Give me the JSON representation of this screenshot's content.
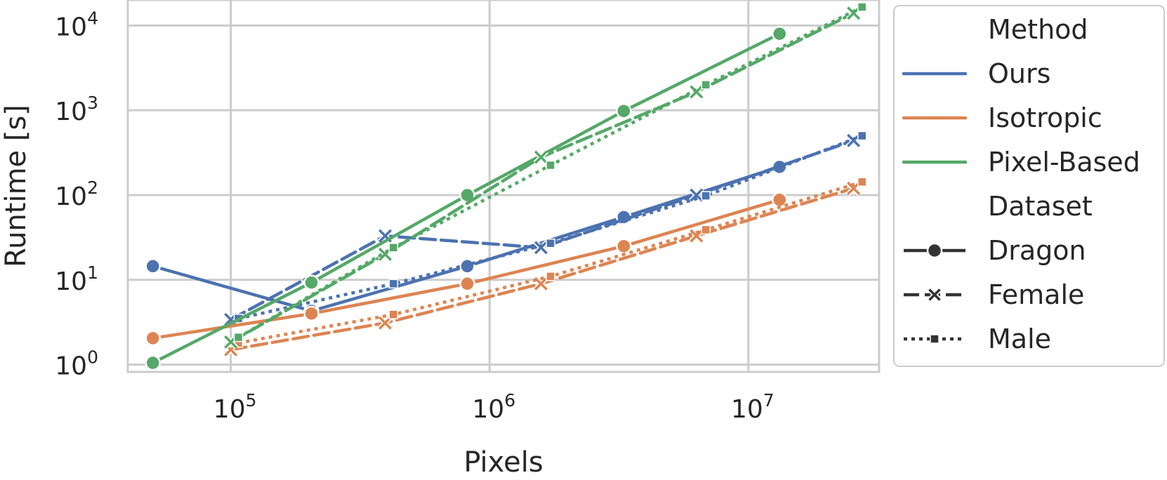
{
  "chart_data": {
    "type": "line",
    "x_scale": "log",
    "y_scale": "log",
    "xlabel": "Pixels",
    "ylabel": "Runtime [s]",
    "xlim": [
      40000,
      32000000
    ],
    "ylim": [
      0.82,
      20000
    ],
    "x_ticks": [
      {
        "base": "10",
        "exp": "5",
        "value": 100000
      },
      {
        "base": "10",
        "exp": "6",
        "value": 1000000
      },
      {
        "base": "10",
        "exp": "7",
        "value": 10000000
      }
    ],
    "y_ticks": [
      {
        "base": "10",
        "exp": "0",
        "value": 1
      },
      {
        "base": "10",
        "exp": "1",
        "value": 10
      },
      {
        "base": "10",
        "exp": "2",
        "value": 100
      },
      {
        "base": "10",
        "exp": "3",
        "value": 1000
      },
      {
        "base": "10",
        "exp": "4",
        "value": 10000
      }
    ],
    "grid": true,
    "legend_position": "outside-right",
    "legend": {
      "method_title": "Method",
      "methods": [
        {
          "label": "Ours",
          "color": "#4c72b0"
        },
        {
          "label": "Isotropic",
          "color": "#dd8452"
        },
        {
          "label": "Pixel-Based",
          "color": "#55a868"
        }
      ],
      "dataset_title": "Dataset",
      "datasets": [
        {
          "label": "Dragon",
          "dash": "solid",
          "marker": "circle"
        },
        {
          "label": "Female",
          "dash": "dashed",
          "marker": "x"
        },
        {
          "label": "Male",
          "dash": "dotted",
          "marker": "square"
        }
      ]
    },
    "series": [
      {
        "method": "Ours",
        "dataset": "Dragon",
        "x": [
          50000,
          205000,
          820000,
          3300000,
          13200000
        ],
        "y": [
          14.5,
          4.3,
          14.5,
          55,
          215
        ]
      },
      {
        "method": "Ours",
        "dataset": "Female",
        "x": [
          100000,
          395000,
          1580000,
          6300000,
          25500000
        ],
        "y": [
          3.4,
          33,
          24,
          100,
          440
        ]
      },
      {
        "method": "Ours",
        "dataset": "Male",
        "x": [
          107000,
          425000,
          1720000,
          6850000,
          27500000
        ],
        "y": [
          3.5,
          9,
          27,
          98,
          500
        ]
      },
      {
        "method": "Isotropic",
        "dataset": "Dragon",
        "x": [
          50000,
          205000,
          820000,
          3300000,
          13200000
        ],
        "y": [
          2.05,
          4.0,
          9.0,
          25,
          88
        ]
      },
      {
        "method": "Isotropic",
        "dataset": "Female",
        "x": [
          100000,
          395000,
          1580000,
          6300000,
          25500000
        ],
        "y": [
          1.5,
          3.1,
          9.0,
          33,
          120
        ]
      },
      {
        "method": "Isotropic",
        "dataset": "Male",
        "x": [
          107000,
          425000,
          1720000,
          6850000,
          27500000
        ],
        "y": [
          1.8,
          3.9,
          11,
          39,
          143
        ]
      },
      {
        "method": "Pixel-Based",
        "dataset": "Dragon",
        "x": [
          50000,
          205000,
          820000,
          3300000,
          13200000
        ],
        "y": [
          1.05,
          9.3,
          100,
          980,
          8000
        ]
      },
      {
        "method": "Pixel-Based",
        "dataset": "Female",
        "x": [
          100000,
          395000,
          1580000,
          6300000,
          25500000
        ],
        "y": [
          1.85,
          20,
          280,
          1650,
          14000
        ]
      },
      {
        "method": "Pixel-Based",
        "dataset": "Male",
        "x": [
          107000,
          425000,
          1720000,
          6850000,
          27500000
        ],
        "y": [
          2.1,
          24,
          225,
          2000,
          16500
        ]
      }
    ]
  }
}
